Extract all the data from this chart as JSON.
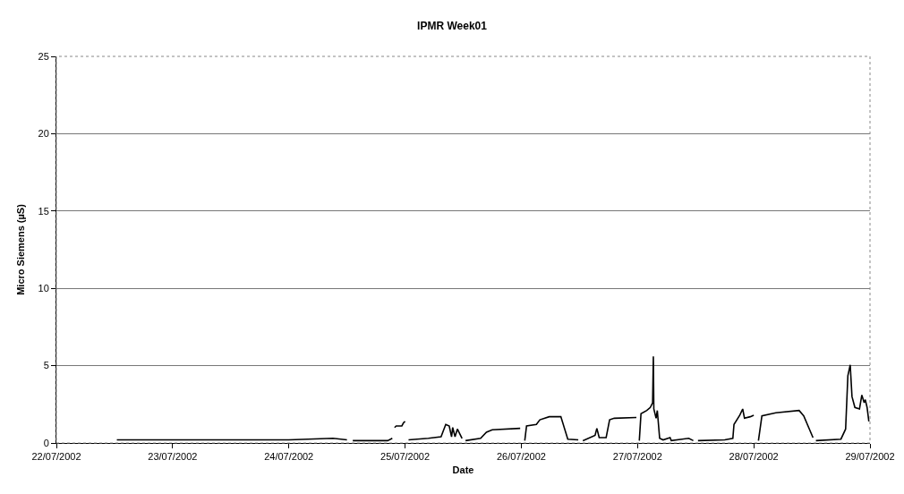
{
  "chart_data": {
    "type": "line",
    "title": "IPMR Week01",
    "xlabel": "Date",
    "ylabel": "Micro Siemens (µS)",
    "x": [
      "2002-07-22T12:29",
      "2002-07-23T00:00",
      "2002-07-24T00:00",
      "2002-07-24T09:07",
      "2002-07-24T12:00",
      "2002-07-24T12:30",
      "2002-07-24T13:12",
      "2002-07-24T20:24",
      "2002-07-24T21:22",
      "2002-07-24T21:40",
      "2002-07-24T21:50",
      "2002-07-24T22:10",
      "2002-07-24T23:20",
      "2002-07-24T23:40",
      "2002-07-25T00:00",
      "2002-07-25T00:30",
      "2002-07-25T00:43",
      "2002-07-25T04:48",
      "2002-07-25T07:26",
      "2002-07-25T08:24",
      "2002-07-25T09:07",
      "2002-07-25T09:36",
      "2002-07-25T09:50",
      "2002-07-25T10:19",
      "2002-07-25T10:48",
      "2002-07-25T11:46",
      "2002-07-25T12:10",
      "2002-07-25T12:29",
      "2002-07-25T15:36",
      "2002-07-25T16:48",
      "2002-07-25T18:00",
      "2002-07-25T23:46",
      "2002-07-26T00:20",
      "2002-07-26T00:43",
      "2002-07-26T01:05",
      "2002-07-26T03:07",
      "2002-07-26T03:50",
      "2002-07-26T05:46",
      "2002-07-26T08:10",
      "2002-07-26T09:36",
      "2002-07-26T11:46",
      "2002-07-26T12:10",
      "2002-07-26T12:43",
      "2002-07-26T15:14",
      "2002-07-26T15:36",
      "2002-07-26T16:05",
      "2002-07-26T17:31",
      "2002-07-26T18:14",
      "2002-07-26T19:12",
      "2002-07-26T23:46",
      "2002-07-27T00:10",
      "2002-07-27T00:22",
      "2002-07-27T00:43",
      "2002-07-27T01:55",
      "2002-07-27T02:38",
      "2002-07-27T03:07",
      "2002-07-27T03:16",
      "2002-07-27T03:22",
      "2002-07-27T03:50",
      "2002-07-27T04:05",
      "2002-07-27T04:34",
      "2002-07-27T05:17",
      "2002-07-27T06:43",
      "2002-07-27T06:58",
      "2002-07-27T10:34",
      "2002-07-27T11:31",
      "2002-07-27T12:00",
      "2002-07-27T12:29",
      "2002-07-27T18:00",
      "2002-07-27T19:41",
      "2002-07-27T19:55",
      "2002-07-27T21:07",
      "2002-07-27T21:43",
      "2002-07-27T22:05",
      "2002-07-27T23:17",
      "2002-07-28T00:00",
      "2002-07-28T00:30",
      "2002-07-28T00:58",
      "2002-07-28T01:41",
      "2002-07-28T04:34",
      "2002-07-28T09:22",
      "2002-07-28T10:19",
      "2002-07-28T12:14",
      "2002-07-28T12:30",
      "2002-07-28T12:50",
      "2002-07-28T18:00",
      "2002-07-28T18:58",
      "2002-07-28T19:26",
      "2002-07-28T19:55",
      "2002-07-28T20:17",
      "2002-07-28T20:53",
      "2002-07-28T21:50",
      "2002-07-28T22:19",
      "2002-07-28T22:48",
      "2002-07-28T23:02",
      "2002-07-28T23:24",
      "2002-07-28T23:46"
    ],
    "series": [
      {
        "color": "#000000",
        "values": [
          0.2,
          0.2,
          0.2,
          0.3,
          0.2,
          null,
          0.15,
          0.15,
          0.3,
          null,
          1.0,
          1.1,
          1.1,
          1.3,
          1.4,
          null,
          0.2,
          0.3,
          0.4,
          1.2,
          1.1,
          0.4,
          1.0,
          0.4,
          0.9,
          0.3,
          null,
          0.15,
          0.3,
          0.7,
          0.85,
          0.95,
          null,
          0.15,
          1.1,
          1.2,
          1.5,
          1.7,
          1.7,
          0.25,
          0.2,
          null,
          0.15,
          0.5,
          0.95,
          0.35,
          0.35,
          1.5,
          1.6,
          1.65,
          null,
          0.15,
          1.9,
          2.1,
          2.3,
          2.6,
          5.6,
          2.2,
          1.6,
          2.1,
          0.3,
          0.2,
          0.35,
          0.15,
          0.3,
          0.15,
          null,
          0.15,
          0.2,
          0.3,
          1.2,
          1.8,
          2.2,
          1.6,
          1.7,
          1.8,
          null,
          0.15,
          1.75,
          1.95,
          2.1,
          1.75,
          0.35,
          null,
          0.15,
          0.25,
          0.9,
          4.35,
          5.05,
          3.0,
          2.3,
          2.2,
          3.1,
          2.6,
          2.8,
          2.3,
          1.4
        ]
      }
    ],
    "xlim": [
      "2002-07-22",
      "2002-07-29"
    ],
    "xticks": [
      {
        "value": "2002-07-22",
        "label": "22/07/2002"
      },
      {
        "value": "2002-07-23",
        "label": "23/07/2002"
      },
      {
        "value": "2002-07-24",
        "label": "24/07/2002"
      },
      {
        "value": "2002-07-25",
        "label": "25/07/2002"
      },
      {
        "value": "2002-07-26",
        "label": "26/07/2002"
      },
      {
        "value": "2002-07-27",
        "label": "27/07/2002"
      },
      {
        "value": "2002-07-28",
        "label": "28/07/2002"
      },
      {
        "value": "2002-07-29",
        "label": "29/07/2002"
      }
    ],
    "ylim": [
      0,
      25
    ],
    "yticks": [
      0,
      5,
      10,
      15,
      20,
      25
    ],
    "grid": "y",
    "marker": "none",
    "line_style": "solid"
  }
}
